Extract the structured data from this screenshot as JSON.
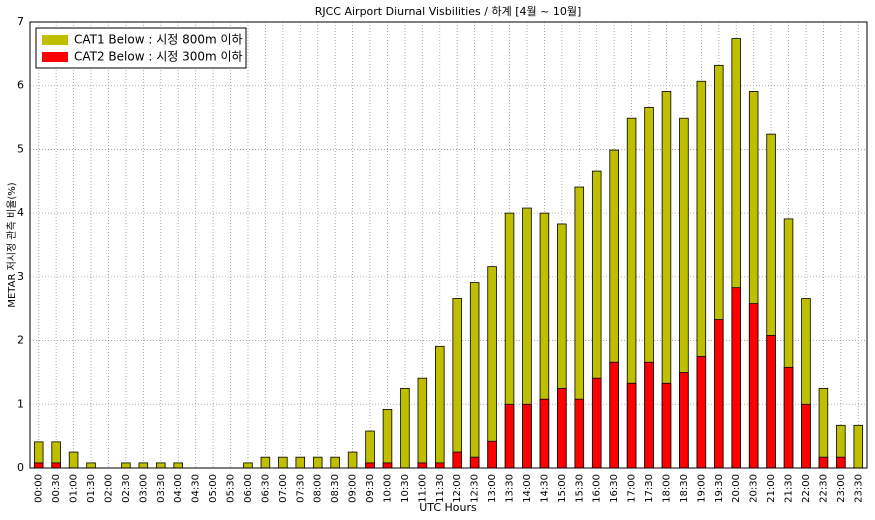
{
  "chart_data": {
    "type": "bar",
    "title": "RJCC Airport Diurnal Visbilities / 하계 [4월 ~ 10월]",
    "x_label": "UTC Hours",
    "y_label": "METAR 저시정 관측 비율(%)",
    "categories": [
      "00:00",
      "00:30",
      "01:00",
      "01:30",
      "02:00",
      "02:30",
      "03:00",
      "03:30",
      "04:00",
      "04:30",
      "05:00",
      "05:30",
      "06:00",
      "06:30",
      "07:00",
      "07:30",
      "08:00",
      "08:30",
      "09:00",
      "09:30",
      "10:00",
      "10:30",
      "11:00",
      "11:30",
      "12:00",
      "12:30",
      "13:00",
      "13:30",
      "14:00",
      "14:30",
      "15:00",
      "15:30",
      "16:00",
      "16:30",
      "17:00",
      "17:30",
      "18:00",
      "18:30",
      "19:00",
      "19:30",
      "20:00",
      "20:30",
      "21:00",
      "21:30",
      "22:00",
      "22:30",
      "23:00",
      "23:30"
    ],
    "series": [
      {
        "name": "CAT1 Below : 시정 800m 이하",
        "color": "#bfbf00",
        "values": [
          0.41,
          0.41,
          0.25,
          0.08,
          0,
          0.08,
          0.08,
          0.08,
          0.08,
          0,
          0,
          0,
          0.08,
          0.17,
          0.17,
          0.17,
          0.17,
          0.17,
          0.25,
          0.58,
          0.92,
          1.25,
          1.41,
          1.91,
          2.66,
          2.91,
          3.16,
          4.0,
          4.08,
          4.0,
          3.83,
          4.41,
          4.66,
          4.99,
          5.49,
          5.66,
          5.91,
          5.49,
          6.07,
          6.32,
          6.74,
          5.91,
          5.24,
          3.91,
          2.66,
          1.25,
          0.67,
          0.67
        ]
      },
      {
        "name": "CAT2 Below : 시정 300m 이하",
        "color": "#ff0000",
        "values": [
          0.08,
          0.08,
          0,
          0,
          0,
          0,
          0,
          0,
          0,
          0,
          0,
          0,
          0,
          0,
          0,
          0,
          0,
          0,
          0,
          0.08,
          0.08,
          0,
          0.08,
          0.08,
          0.25,
          0.17,
          0.42,
          1.0,
          1.0,
          1.08,
          1.25,
          1.08,
          1.41,
          1.66,
          1.33,
          1.66,
          1.33,
          1.5,
          1.75,
          2.33,
          2.83,
          2.58,
          2.08,
          1.58,
          1.0,
          0.17,
          0.17,
          0
        ]
      }
    ],
    "ylim": [
      0,
      7
    ],
    "yticks": [
      0,
      1,
      2,
      3,
      4,
      5,
      6,
      7
    ],
    "grid": true,
    "legend_location": "upper left",
    "overlay": true
  }
}
